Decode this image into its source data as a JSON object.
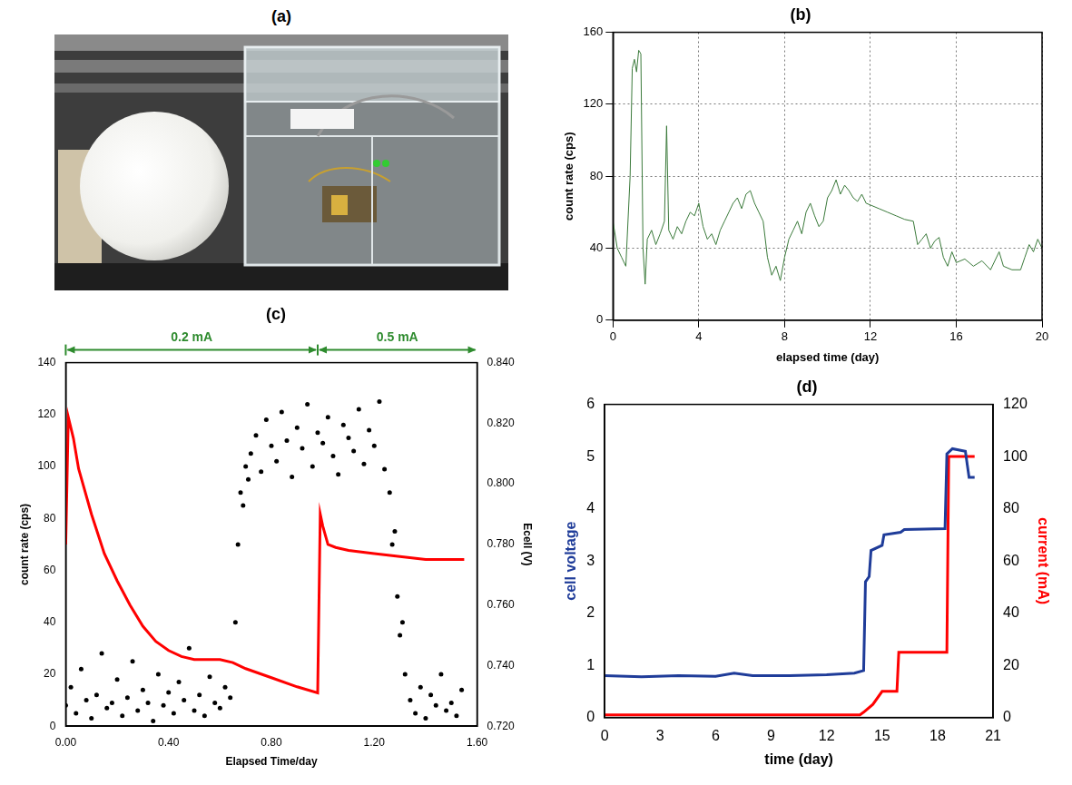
{
  "photo": {
    "label": "(a)"
  },
  "chart_data": [
    {
      "type": "line",
      "title": "(b)",
      "xlabel": "elapsed time (day)",
      "ylabel": "count rate (cps)",
      "xlim": [
        0,
        20
      ],
      "xticks": [
        0,
        4,
        8,
        12,
        16,
        20
      ],
      "ylim": [
        0,
        160
      ],
      "yticks": [
        0,
        40,
        80,
        120,
        160
      ],
      "grid": true,
      "series": [
        {
          "color": "#3b7a3b",
          "axis": "y",
          "x": [
            0,
            0.2,
            0.4,
            0.6,
            0.8,
            0.9,
            1.0,
            1.1,
            1.2,
            1.3,
            1.4,
            1.5,
            1.6,
            1.8,
            2.0,
            2.2,
            2.4,
            2.5,
            2.6,
            2.8,
            3.0,
            3.2,
            3.4,
            3.6,
            3.8,
            4.0,
            4.2,
            4.4,
            4.6,
            4.8,
            5.0,
            5.2,
            5.4,
            5.6,
            5.8,
            6.0,
            6.2,
            6.4,
            6.6,
            6.8,
            7.0,
            7.2,
            7.4,
            7.6,
            7.8,
            8.0,
            8.2,
            8.4,
            8.6,
            8.8,
            9.0,
            9.2,
            9.4,
            9.6,
            9.8,
            10.0,
            10.2,
            10.4,
            10.6,
            10.8,
            11.0,
            11.2,
            11.4,
            11.6,
            11.8,
            12.0,
            12.4,
            12.8,
            13.2,
            13.6,
            14.0,
            14.2,
            14.4,
            14.6,
            14.8,
            15.0,
            15.2,
            15.4,
            15.6,
            15.8,
            16.0,
            16.4,
            16.8,
            17.2,
            17.6,
            18.0,
            18.2,
            18.6,
            19.0,
            19.2,
            19.4,
            19.6,
            19.8,
            20.0
          ],
          "values": [
            55,
            40,
            35,
            30,
            80,
            140,
            145,
            138,
            150,
            148,
            40,
            20,
            45,
            50,
            42,
            48,
            55,
            108,
            50,
            45,
            52,
            48,
            55,
            60,
            58,
            65,
            52,
            45,
            48,
            42,
            50,
            55,
            60,
            65,
            68,
            62,
            70,
            72,
            65,
            60,
            55,
            35,
            25,
            30,
            22,
            35,
            45,
            50,
            55,
            48,
            60,
            65,
            58,
            52,
            55,
            68,
            72,
            78,
            70,
            75,
            72,
            68,
            66,
            70,
            65,
            64,
            62,
            60,
            58,
            56,
            55,
            42,
            45,
            48,
            40,
            44,
            46,
            35,
            30,
            38,
            32,
            34,
            30,
            33,
            28,
            38,
            30,
            28,
            28,
            35,
            42,
            38,
            45,
            40
          ]
        }
      ]
    },
    {
      "type": "scatter",
      "title": "(c)",
      "xlabel": "Elapsed Time/day",
      "ylabel": "count rate (cps)",
      "y2label": "Ecell (V)",
      "xlim": [
        0,
        1.6
      ],
      "xticks": [
        {
          "value": 0,
          "label": "0.00"
        },
        {
          "value": 0.4,
          "label": "0.40"
        },
        {
          "value": 0.8,
          "label": "0.80"
        },
        {
          "value": 1.2,
          "label": "1.20"
        },
        {
          "value": 1.6,
          "label": "1.60"
        }
      ],
      "ylim": [
        0,
        140
      ],
      "yticks": [
        0,
        20,
        40,
        60,
        80,
        100,
        120,
        140
      ],
      "y2lim": [
        0.72,
        0.84
      ],
      "y2ticks": [
        {
          "value": 0.72,
          "label": "0.720"
        },
        {
          "value": 0.74,
          "label": "0.740"
        },
        {
          "value": 0.76,
          "label": "0.760"
        },
        {
          "value": 0.78,
          "label": "0.780"
        },
        {
          "value": 0.8,
          "label": "0.800"
        },
        {
          "value": 0.82,
          "label": "0.820"
        },
        {
          "value": 0.84,
          "label": "0.840"
        }
      ],
      "grid": false,
      "annotations": [
        {
          "text": "0.2 mA",
          "x_start": 0,
          "x_end": 0.98,
          "color": "#2e8b2e"
        },
        {
          "text": "0.5 mA",
          "x_start": 0.98,
          "x_end": 1.6,
          "color": "#2e8b2e"
        }
      ],
      "series": [
        {
          "type": "scatter",
          "marker": "circle",
          "color": "#000000",
          "axis": "y",
          "x": [
            0,
            0.02,
            0.04,
            0.06,
            0.08,
            0.1,
            0.12,
            0.14,
            0.16,
            0.18,
            0.2,
            0.22,
            0.24,
            0.26,
            0.28,
            0.3,
            0.32,
            0.34,
            0.36,
            0.38,
            0.4,
            0.42,
            0.44,
            0.46,
            0.48,
            0.5,
            0.52,
            0.54,
            0.56,
            0.58,
            0.6,
            0.62,
            0.64,
            0.66,
            0.67,
            0.68,
            0.69,
            0.7,
            0.71,
            0.72,
            0.74,
            0.76,
            0.78,
            0.8,
            0.82,
            0.84,
            0.86,
            0.88,
            0.9,
            0.92,
            0.94,
            0.96,
            0.98,
            1.0,
            1.02,
            1.04,
            1.06,
            1.08,
            1.1,
            1.12,
            1.14,
            1.16,
            1.18,
            1.2,
            1.22,
            1.24,
            1.26,
            1.27,
            1.28,
            1.29,
            1.3,
            1.31,
            1.32,
            1.34,
            1.36,
            1.38,
            1.4,
            1.42,
            1.44,
            1.46,
            1.48,
            1.5,
            1.52,
            1.54
          ],
          "values": [
            8,
            15,
            5,
            22,
            10,
            3,
            12,
            28,
            7,
            9,
            18,
            4,
            11,
            25,
            6,
            14,
            9,
            2,
            20,
            8,
            13,
            5,
            17,
            10,
            30,
            6,
            12,
            4,
            19,
            9,
            7,
            15,
            11,
            40,
            70,
            90,
            85,
            100,
            95,
            105,
            112,
            98,
            118,
            108,
            102,
            121,
            110,
            96,
            115,
            107,
            124,
            100,
            113,
            109,
            119,
            104,
            97,
            116,
            111,
            106,
            122,
            101,
            114,
            108,
            125,
            99,
            90,
            70,
            75,
            50,
            35,
            40,
            20,
            10,
            5,
            15,
            3,
            12,
            8,
            20,
            6,
            9,
            4,
            14
          ]
        },
        {
          "type": "line",
          "color": "#ff0000",
          "axis": "y2",
          "x": [
            0,
            0.01,
            0.03,
            0.05,
            0.1,
            0.15,
            0.2,
            0.25,
            0.3,
            0.35,
            0.4,
            0.45,
            0.5,
            0.6,
            0.65,
            0.7,
            0.8,
            0.9,
            0.98,
            0.99,
            1.0,
            1.02,
            1.05,
            1.1,
            1.2,
            1.3,
            1.4,
            1.5,
            1.55
          ],
          "values": [
            0.78,
            0.822,
            0.815,
            0.805,
            0.79,
            0.777,
            0.768,
            0.76,
            0.753,
            0.748,
            0.745,
            0.743,
            0.742,
            0.742,
            0.741,
            0.739,
            0.736,
            0.733,
            0.731,
            0.79,
            0.786,
            0.78,
            0.779,
            0.778,
            0.777,
            0.776,
            0.775,
            0.775,
            0.775
          ]
        }
      ]
    },
    {
      "type": "line",
      "title": "(d)",
      "xlabel": "time (day)",
      "ylabel": "cell voltage",
      "y2label": "current (mA)",
      "xlim": [
        0,
        21
      ],
      "xticks": [
        0,
        3,
        6,
        9,
        12,
        15,
        18,
        21
      ],
      "ylim": [
        0,
        6
      ],
      "yticks": [
        0,
        1,
        2,
        3,
        4,
        5,
        6
      ],
      "y2lim": [
        0,
        120
      ],
      "y2ticks": [
        0,
        20,
        40,
        60,
        80,
        100,
        120
      ],
      "grid": false,
      "series": [
        {
          "color": "#1f3c99",
          "axis": "y",
          "x": [
            0,
            2,
            4,
            6,
            7,
            8,
            10,
            12,
            13.5,
            14,
            14.1,
            14.3,
            14.4,
            15,
            15.1,
            16,
            16.2,
            18.4,
            18.5,
            18.8,
            19.5,
            19.7,
            20
          ],
          "values": [
            0.8,
            0.78,
            0.8,
            0.79,
            0.85,
            0.8,
            0.8,
            0.82,
            0.85,
            0.9,
            2.6,
            2.7,
            3.2,
            3.3,
            3.5,
            3.55,
            3.6,
            3.62,
            5.05,
            5.15,
            5.1,
            4.6,
            4.6
          ]
        },
        {
          "color": "#ff0000",
          "axis": "y2",
          "x": [
            0,
            13.8,
            14,
            14.5,
            15,
            15.8,
            15.9,
            18.5,
            18.6,
            20
          ],
          "values": [
            1,
            1,
            2,
            5,
            10,
            10,
            25,
            25,
            100,
            100
          ]
        }
      ]
    }
  ]
}
